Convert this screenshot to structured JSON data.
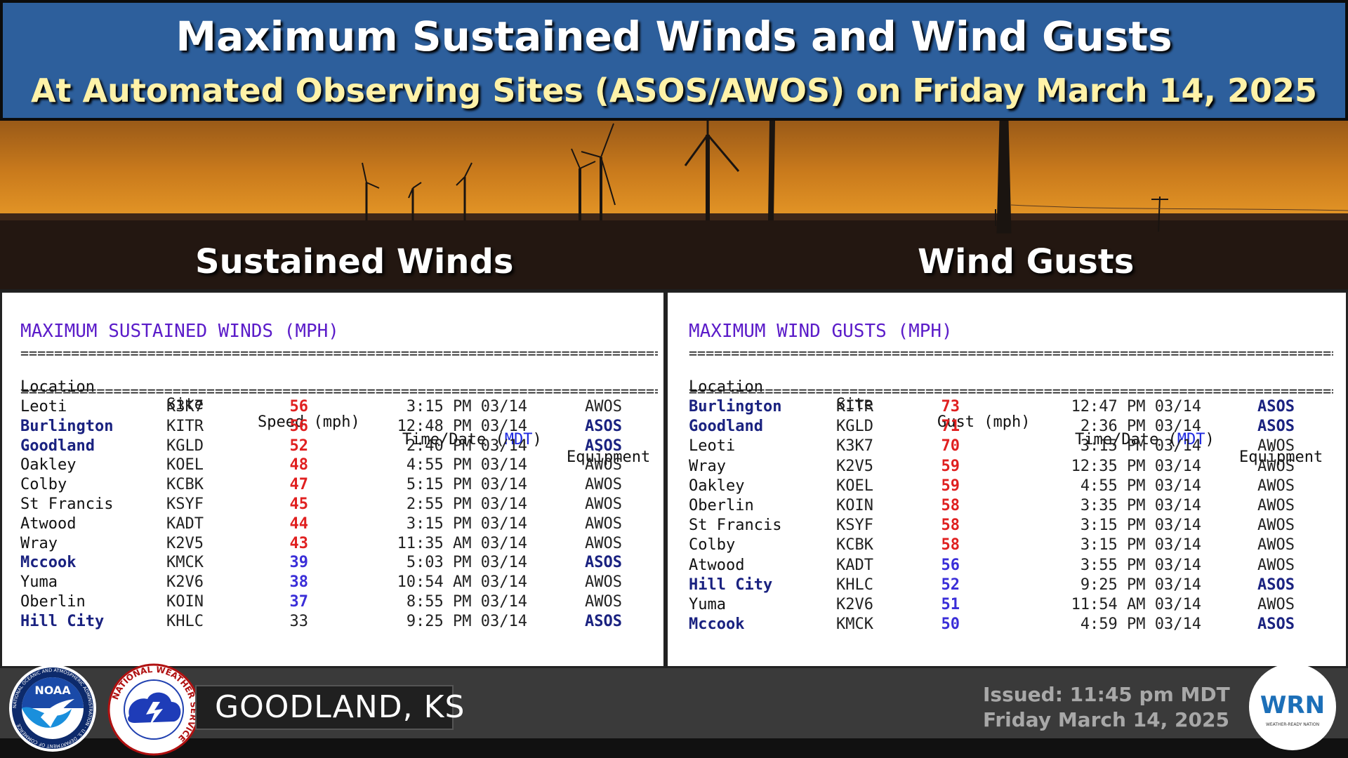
{
  "header": {
    "title": "Maximum Sustained Winds and Wind Gusts",
    "subtitle": "At Automated Observing Sites (ASOS/AWOS) on Friday March 14, 2025"
  },
  "sections": {
    "left_label": "Sustained Winds",
    "right_label": "Wind Gusts"
  },
  "sustained": {
    "title": "MAXIMUM SUSTAINED WINDS (MPH)",
    "columns": {
      "location": "Location",
      "site": "Site",
      "value": "Speed (mph)",
      "time_pre": "Time/Date (",
      "time_tz": "MDT",
      "time_post": ")",
      "equipment": "Equipment"
    },
    "rows": [
      {
        "location": "Leoti",
        "site": "K3K7",
        "value": "56",
        "time": "3:15 PM 03/14",
        "equipment": "AWOS"
      },
      {
        "location": "Burlington",
        "site": "KITR",
        "value": "56",
        "time": "12:48 PM 03/14",
        "equipment": "ASOS"
      },
      {
        "location": "Goodland",
        "site": "KGLD",
        "value": "52",
        "time": "2:40 PM 03/14",
        "equipment": "ASOS"
      },
      {
        "location": "Oakley",
        "site": "KOEL",
        "value": "48",
        "time": "4:55 PM 03/14",
        "equipment": "AWOS"
      },
      {
        "location": "Colby",
        "site": "KCBK",
        "value": "47",
        "time": "5:15 PM 03/14",
        "equipment": "AWOS"
      },
      {
        "location": "St Francis",
        "site": "KSYF",
        "value": "45",
        "time": "2:55 PM 03/14",
        "equipment": "AWOS"
      },
      {
        "location": "Atwood",
        "site": "KADT",
        "value": "44",
        "time": "3:15 PM 03/14",
        "equipment": "AWOS"
      },
      {
        "location": "Wray",
        "site": "K2V5",
        "value": "43",
        "time": "11:35 AM 03/14",
        "equipment": "AWOS"
      },
      {
        "location": "Mccook",
        "site": "KMCK",
        "value": "39",
        "time": "5:03 PM 03/14",
        "equipment": "ASOS"
      },
      {
        "location": "Yuma",
        "site": "K2V6",
        "value": "38",
        "time": "10:54 AM 03/14",
        "equipment": "AWOS"
      },
      {
        "location": "Oberlin",
        "site": "KOIN",
        "value": "37",
        "time": "8:55 PM 03/14",
        "equipment": "AWOS"
      },
      {
        "location": "Hill City",
        "site": "KHLC",
        "value": "33",
        "time": "9:25 PM 03/14",
        "equipment": "ASOS"
      }
    ]
  },
  "gusts": {
    "title": "MAXIMUM WIND GUSTS (MPH)",
    "columns": {
      "location": "Location",
      "site": "Site",
      "value": "Gust (mph)",
      "time_pre": "Time/Date (",
      "time_tz": "MDT",
      "time_post": ")",
      "equipment": "Equipment"
    },
    "rows": [
      {
        "location": "Burlington",
        "site": "KITR",
        "value": "73",
        "time": "12:47 PM 03/14",
        "equipment": "ASOS"
      },
      {
        "location": "Goodland",
        "site": "KGLD",
        "value": "71",
        "time": "2:36 PM 03/14",
        "equipment": "ASOS"
      },
      {
        "location": "Leoti",
        "site": "K3K7",
        "value": "70",
        "time": "3:15 PM 03/14",
        "equipment": "AWOS"
      },
      {
        "location": "Wray",
        "site": "K2V5",
        "value": "59",
        "time": "12:35 PM 03/14",
        "equipment": "AWOS"
      },
      {
        "location": "Oakley",
        "site": "KOEL",
        "value": "59",
        "time": "4:55 PM 03/14",
        "equipment": "AWOS"
      },
      {
        "location": "Oberlin",
        "site": "KOIN",
        "value": "58",
        "time": "3:35 PM 03/14",
        "equipment": "AWOS"
      },
      {
        "location": "St Francis",
        "site": "KSYF",
        "value": "58",
        "time": "3:15 PM 03/14",
        "equipment": "AWOS"
      },
      {
        "location": "Colby",
        "site": "KCBK",
        "value": "58",
        "time": "3:15 PM 03/14",
        "equipment": "AWOS"
      },
      {
        "location": "Atwood",
        "site": "KADT",
        "value": "56",
        "time": "3:55 PM 03/14",
        "equipment": "AWOS"
      },
      {
        "location": "Hill City",
        "site": "KHLC",
        "value": "52",
        "time": "9:25 PM 03/14",
        "equipment": "ASOS"
      },
      {
        "location": "Yuma",
        "site": "K2V6",
        "value": "51",
        "time": "11:54 AM 03/14",
        "equipment": "AWOS"
      },
      {
        "location": "Mccook",
        "site": "KMCK",
        "value": "50",
        "time": "4:59 PM 03/14",
        "equipment": "ASOS"
      }
    ]
  },
  "footer": {
    "location": "GOODLAND, KS",
    "issued_line1": "Issued:  11:45 pm MDT",
    "issued_line2": "Friday March 14, 2025",
    "noaa_text": "NOAA",
    "noaa_ring": "NATIONAL OCEANIC AND ATMOSPHERIC ADMINISTRATION · U.S. DEPARTMENT OF COMMERCE",
    "nws_ring": "NATIONAL WEATHER SERVICE",
    "wrn_text": "WRN",
    "wrn_sub": "WEATHER-READY NATION"
  },
  "colors": {
    "header_bg": "#2d5f9c",
    "subtitle": "#fff2a8",
    "title_purple": "#5b1cc9",
    "high_value": "#e02020",
    "low_value": "#3a2ed8",
    "asos_site": "#1a2280"
  }
}
